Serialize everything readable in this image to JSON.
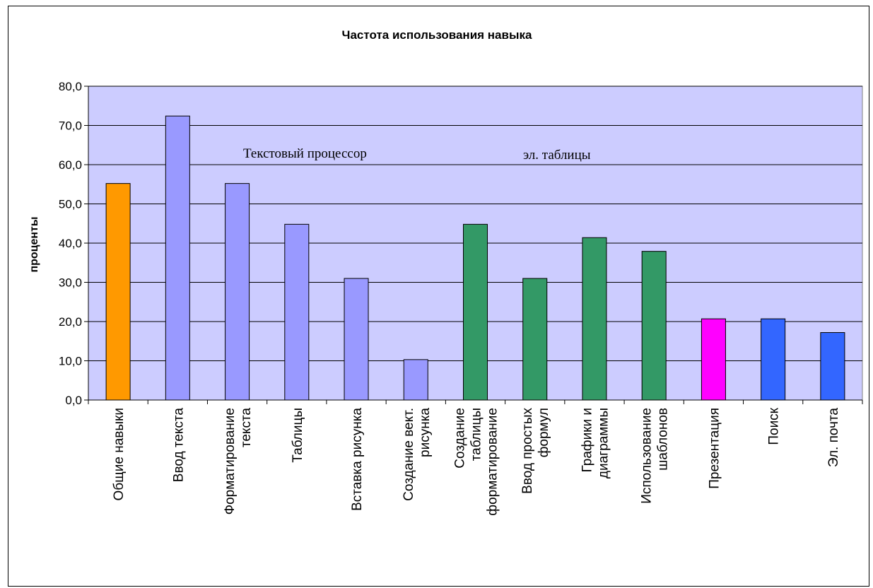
{
  "chart_data": {
    "type": "bar",
    "title": "Частота использования навыка",
    "xlabel": "",
    "ylabel": "проценты",
    "ylim": [
      0,
      80
    ],
    "yticks": [
      "0,0",
      "10,0",
      "20,0",
      "30,0",
      "40,0",
      "50,0",
      "60,0",
      "70,0",
      "80,0"
    ],
    "grid": true,
    "legend": "none",
    "categories": [
      [
        "Общие навыки"
      ],
      [
        "Ввод текста"
      ],
      [
        "Форматирование",
        "текста"
      ],
      [
        "Таблицы"
      ],
      [
        "Вставка рисунка"
      ],
      [
        "Создание вект.",
        "рисунка"
      ],
      [
        "Создание",
        "таблицы",
        "форматирование"
      ],
      [
        "Ввод простых",
        "формул"
      ],
      [
        "Графики и",
        "диаграммы"
      ],
      [
        "Использование",
        "шаблонов"
      ],
      [
        "Презентация"
      ],
      [
        "Поиск"
      ],
      [
        "Эл. почта"
      ]
    ],
    "values": [
      55.2,
      72.4,
      55.2,
      44.8,
      31.0,
      10.3,
      44.8,
      31.0,
      41.4,
      37.9,
      20.7,
      20.7,
      17.2
    ],
    "bar_colors": [
      "#FF9900",
      "#9999FF",
      "#9999FF",
      "#9999FF",
      "#9999FF",
      "#9999FF",
      "#339966",
      "#339966",
      "#339966",
      "#339966",
      "#FF00FF",
      "#3366FF",
      "#3366FF"
    ],
    "plot_background": "#CCCCFF",
    "annotations": [
      "Текстовый процессор",
      "эл. таблицы"
    ]
  }
}
